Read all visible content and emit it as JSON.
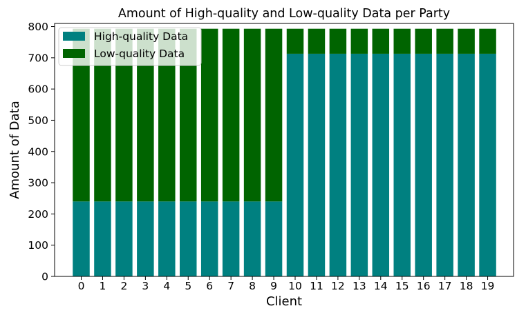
{
  "chart_data": {
    "type": "bar",
    "stacked": true,
    "title": "Amount of High-quality and Low-quality Data per Party",
    "xlabel": "Client",
    "ylabel": "Amount of Data",
    "ylim": [
      0,
      800
    ],
    "yticks": [
      0,
      100,
      200,
      300,
      400,
      500,
      600,
      700,
      800
    ],
    "categories": [
      "0",
      "1",
      "2",
      "3",
      "4",
      "5",
      "6",
      "7",
      "8",
      "9",
      "10",
      "11",
      "12",
      "13",
      "14",
      "15",
      "16",
      "17",
      "18",
      "19"
    ],
    "series": [
      {
        "name": "High-quality Data",
        "color": "#008080",
        "values": [
          240,
          240,
          240,
          240,
          240,
          240,
          240,
          240,
          240,
          240,
          713,
          713,
          713,
          713,
          713,
          713,
          713,
          713,
          713,
          713
        ]
      },
      {
        "name": "Low-quality Data",
        "color": "#006400",
        "values": [
          553,
          553,
          553,
          553,
          553,
          553,
          553,
          553,
          553,
          553,
          80,
          80,
          80,
          80,
          80,
          80,
          80,
          80,
          80,
          80
        ]
      }
    ],
    "legend_position": "top-left",
    "grid": false
  }
}
